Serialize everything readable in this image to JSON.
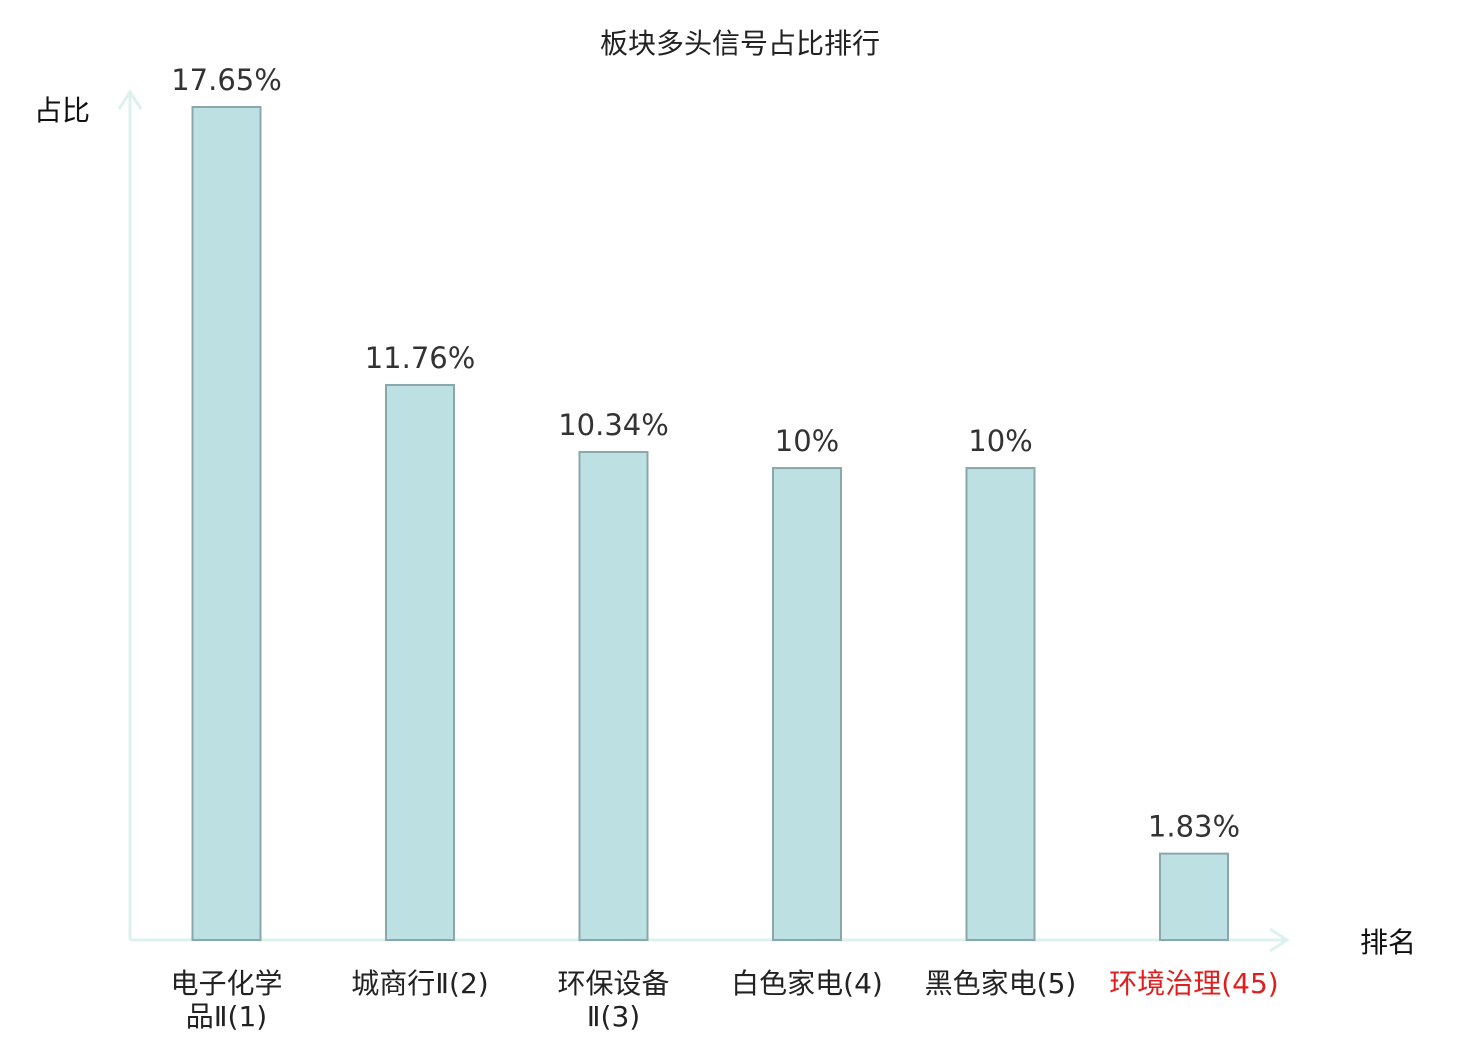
{
  "colors": {
    "bar_fill": "#bde0e3",
    "bar_stroke": "#8aa8ab",
    "axis": "#ddf1ee",
    "highlight_label": "#e01e1e"
  },
  "chart_data": {
    "type": "bar",
    "title": "板块多头信号占比排行",
    "xlabel": "排名",
    "ylabel": "占比",
    "ylim": [
      0,
      18.5
    ],
    "grid": false,
    "categories": [
      {
        "lines": [
          "电子化学",
          "品Ⅱ(1)"
        ],
        "highlight": false
      },
      {
        "lines": [
          "城商行Ⅱ(2)"
        ],
        "highlight": false
      },
      {
        "lines": [
          "环保设备",
          "Ⅱ(3)"
        ],
        "highlight": false
      },
      {
        "lines": [
          "白色家电(4)"
        ],
        "highlight": false
      },
      {
        "lines": [
          "黑色家电(5)"
        ],
        "highlight": false
      },
      {
        "lines": [
          "环境治理(45)"
        ],
        "highlight": true
      }
    ],
    "values": [
      17.65,
      11.76,
      10.34,
      10,
      10,
      1.83
    ],
    "value_labels": [
      "17.65%",
      "11.76%",
      "10.34%",
      "10%",
      "10%",
      "1.83%"
    ]
  }
}
